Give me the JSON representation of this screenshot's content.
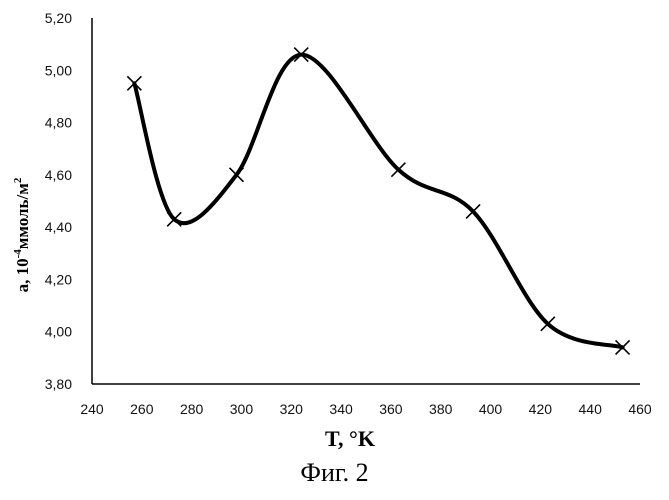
{
  "chart_data": {
    "type": "line",
    "x": [
      257,
      273,
      298,
      324,
      363,
      393,
      423,
      453
    ],
    "series": [
      {
        "values": [
          4.95,
          4.43,
          4.6,
          5.06,
          4.62,
          4.46,
          4.03,
          3.94
        ]
      }
    ],
    "xlim": [
      240,
      460
    ],
    "ylim": [
      3.8,
      5.2
    ],
    "x_ticks": [
      "240",
      "260",
      "280",
      "300",
      "320",
      "340",
      "360",
      "380",
      "400",
      "420",
      "440",
      "460"
    ],
    "y_ticks": [
      "3,80",
      "4,00",
      "4,20",
      "4,40",
      "4,60",
      "4,80",
      "5,00",
      "5,20"
    ],
    "xlabel": "T, °K",
    "ylabel_main": "a, 10",
    "ylabel_exp": "-4",
    "ylabel_unit": "ммоль/м",
    "ylabel_unit_exp": "2",
    "marker": "x",
    "grid": false,
    "line_color": "#000000"
  },
  "caption": "Фиг. 2"
}
